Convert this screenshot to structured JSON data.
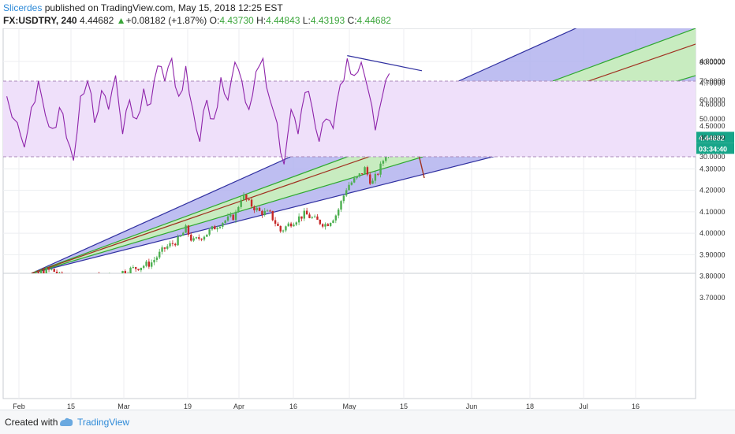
{
  "header": {
    "author": "Slicerdes",
    "published": " published on TradingView.com, May 15, 2018 12:25 EST",
    "symbol": "FX:USDTRY, 240",
    "last": "4.44682",
    "change": "+0.08182 (+1.87%)",
    "open_label": "O:",
    "open": "4.43730",
    "high_label": "H:",
    "high": "4.44843",
    "low_label": "L:",
    "low": "4.43193",
    "close_label": "C:",
    "close": "4.44682"
  },
  "footer": {
    "created": "Created with",
    "brand": "TradingView"
  },
  "colors": {
    "candle_up": "#4caf50",
    "candle_down": "#c62828",
    "fan_outer": "#3030a0",
    "fan_inner": "#2ea82e",
    "fan_mid": "#a03020",
    "fan_outer_fill": "#b3b3ee",
    "fan_inner_fill": "#c8ecc0",
    "rsi_line": "#8e24aa",
    "rsi_band": "#efe0fa",
    "price_line": "#17a589"
  },
  "chart_data": [
    {
      "type": "candlestick",
      "symbol": "FX:USDTRY",
      "timeframe": "240",
      "x_tick_labels": [
        "Feb",
        "15",
        "Mar",
        "19",
        "Apr",
        "16",
        "May",
        "15",
        "Jun",
        "18",
        "Jul",
        "16"
      ],
      "ylim": [
        3.7,
        4.8
      ],
      "y_ticks": [
        "3.70000",
        "3.80000",
        "3.90000",
        "4.00000",
        "4.10000",
        "4.20000",
        "4.30000",
        "4.50000",
        "4.60000",
        "4.70000",
        "4.80000"
      ],
      "current_price": "4.44682",
      "countdown": "03:34:40",
      "approx_close_path": [
        [
          -3,
          3.79
        ],
        [
          2,
          3.77
        ],
        [
          7,
          3.82
        ],
        [
          10,
          3.83
        ],
        [
          12,
          3.8
        ],
        [
          16,
          3.76
        ],
        [
          20,
          3.8
        ],
        [
          26,
          3.79
        ],
        [
          30,
          3.82
        ],
        [
          34,
          3.84
        ],
        [
          38,
          3.86
        ],
        [
          42,
          3.93
        ],
        [
          46,
          3.97
        ],
        [
          48,
          4.02
        ],
        [
          50,
          3.96
        ],
        [
          54,
          4.0
        ],
        [
          58,
          4.05
        ],
        [
          62,
          4.08
        ],
        [
          64,
          4.18
        ],
        [
          66,
          4.14
        ],
        [
          69,
          4.1
        ],
        [
          72,
          4.09
        ],
        [
          75,
          4.01
        ],
        [
          78,
          4.05
        ],
        [
          82,
          4.09
        ],
        [
          85,
          4.06
        ],
        [
          88,
          4.04
        ],
        [
          91,
          4.09
        ],
        [
          94,
          4.22
        ],
        [
          97,
          4.26
        ],
        [
          99,
          4.3
        ],
        [
          101,
          4.23
        ],
        [
          103,
          4.29
        ],
        [
          105,
          4.37
        ],
        [
          106,
          4.44
        ]
      ]
    },
    {
      "type": "line",
      "indicator": "RSI",
      "ylim": [
        25,
        85
      ],
      "y_ticks": [
        "30.0000",
        "40.0000",
        "50.0000",
        "60.0000",
        "70.0000",
        "80.0000"
      ],
      "band": [
        30,
        70
      ],
      "approx_path": [
        [
          -3,
          62
        ],
        [
          0,
          48
        ],
        [
          2,
          35
        ],
        [
          4,
          56
        ],
        [
          6,
          70
        ],
        [
          8,
          52
        ],
        [
          10,
          45
        ],
        [
          12,
          56
        ],
        [
          14,
          40
        ],
        [
          16,
          28
        ],
        [
          18,
          62
        ],
        [
          20,
          70
        ],
        [
          22,
          48
        ],
        [
          24,
          65
        ],
        [
          26,
          55
        ],
        [
          28,
          73
        ],
        [
          30,
          42
        ],
        [
          32,
          60
        ],
        [
          34,
          50
        ],
        [
          36,
          66
        ],
        [
          38,
          58
        ],
        [
          40,
          78
        ],
        [
          42,
          70
        ],
        [
          44,
          82
        ],
        [
          46,
          62
        ],
        [
          48,
          78
        ],
        [
          50,
          55
        ],
        [
          52,
          38
        ],
        [
          54,
          60
        ],
        [
          56,
          50
        ],
        [
          58,
          72
        ],
        [
          60,
          60
        ],
        [
          62,
          80
        ],
        [
          64,
          70
        ],
        [
          66,
          55
        ],
        [
          68,
          75
        ],
        [
          70,
          82
        ],
        [
          72,
          60
        ],
        [
          74,
          48
        ],
        [
          76,
          26
        ],
        [
          78,
          55
        ],
        [
          80,
          42
        ],
        [
          82,
          64
        ],
        [
          84,
          56
        ],
        [
          86,
          38
        ],
        [
          88,
          50
        ],
        [
          90,
          45
        ],
        [
          92,
          68
        ],
        [
          94,
          82
        ],
        [
          96,
          73
        ],
        [
          98,
          80
        ],
        [
          100,
          65
        ],
        [
          102,
          44
        ],
        [
          104,
          62
        ],
        [
          106,
          74
        ]
      ]
    }
  ]
}
